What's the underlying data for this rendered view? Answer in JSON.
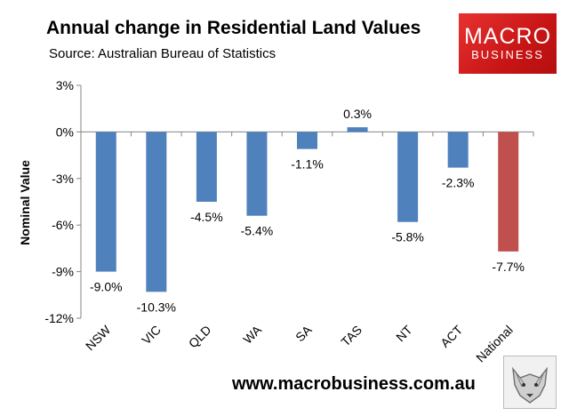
{
  "header": {
    "title": "Annual change in Residential Land Values",
    "subtitle": "Source: Australian Bureau of Statistics"
  },
  "logo": {
    "line1": "MACRO",
    "line2": "BUSINESS"
  },
  "footer": {
    "website": "www.macrobusiness.com.au"
  },
  "colors": {
    "bar": "#4f81bd",
    "highlight": "#c0504d",
    "axis": "#868686"
  },
  "chart_data": {
    "type": "bar",
    "title": "Annual change in Residential Land Values",
    "xlabel": "",
    "ylabel": "Nominal Value",
    "categories": [
      "NSW",
      "VIC",
      "QLD",
      "WA",
      "SA",
      "TAS",
      "NT",
      "ACT",
      "National"
    ],
    "values": [
      -9.0,
      -10.3,
      -4.5,
      -5.4,
      -1.1,
      0.3,
      -5.8,
      -2.3,
      -7.7
    ],
    "data_labels": [
      "-9.0%",
      "-10.3%",
      "-4.5%",
      "-5.4%",
      "-1.1%",
      "0.3%",
      "-5.8%",
      "-2.3%",
      "-7.7%"
    ],
    "highlight_category": "National",
    "ylim": [
      -12,
      3
    ],
    "yticks": [
      3,
      0,
      -3,
      -6,
      -9,
      -12
    ],
    "ytick_labels": [
      "3%",
      "0%",
      "-3%",
      "-6%",
      "-9%",
      "-12%"
    ],
    "grid": false,
    "legend": "none"
  }
}
